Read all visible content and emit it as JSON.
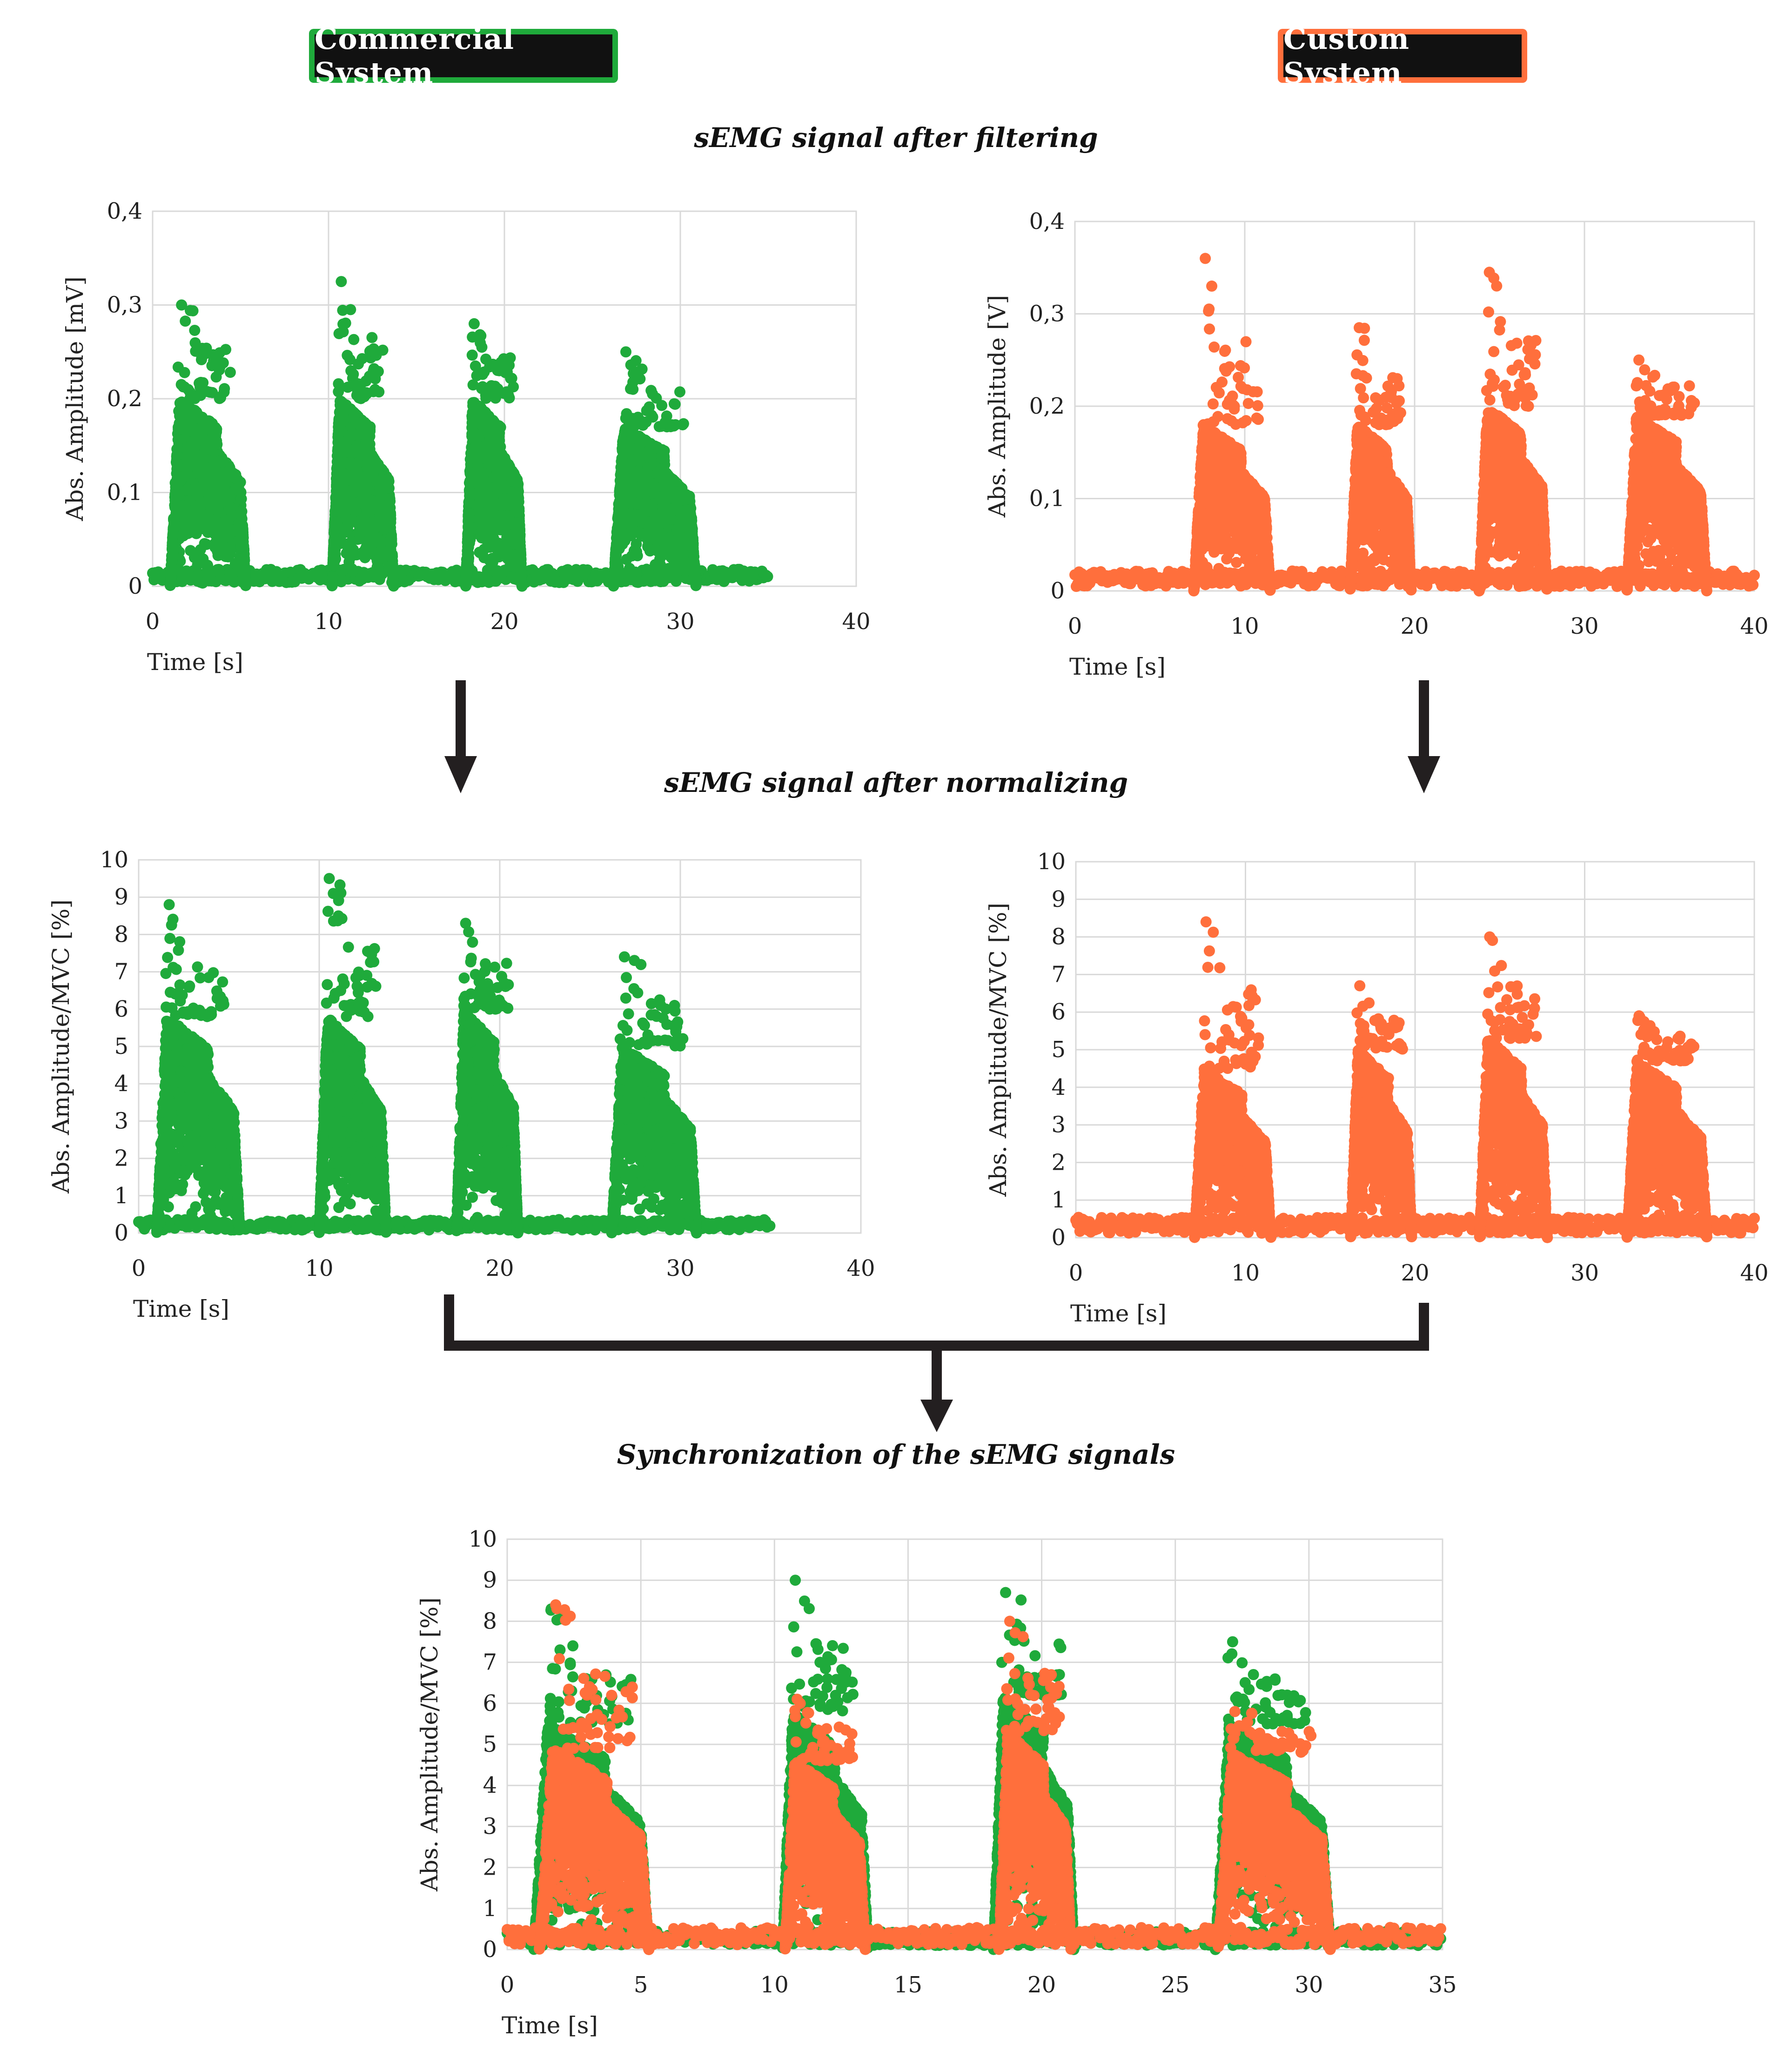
{
  "labels": {
    "commercial": "Commercial System",
    "custom": "Custom System"
  },
  "stages": {
    "filtering": "sEMG signal after filtering",
    "normalizing": "sEMG signal after normalizing",
    "synchronization": "Synchronization of the sEMG signals"
  },
  "colors": {
    "commercial": "#1faa3b",
    "custom": "#ff6f3c",
    "arrow": "#231f20",
    "grid": "#d9d9d9",
    "label_bg": "#111111"
  },
  "chart_data": [
    {
      "id": "commercial-filtered",
      "type": "scatter",
      "title": "",
      "xlabel": "Time [s]",
      "ylabel": "Abs. Amplitude [mV]",
      "xlim": [
        0,
        40
      ],
      "ylim": [
        0,
        0.4
      ],
      "xticks": [
        "0",
        "10",
        "20",
        "30",
        "40"
      ],
      "yticks": [
        "0",
        "0,1",
        "0,2",
        "0,3",
        "0,4"
      ],
      "grid": true,
      "series": [
        {
          "name": "Commercial System",
          "color": "#1faa3b",
          "baseline": 0.01,
          "x_end": 35,
          "bursts": [
            {
              "start": 1.0,
              "end": 5.3,
              "peak": 0.3,
              "body": 0.2
            },
            {
              "start": 10.2,
              "end": 13.7,
              "peak": 0.325,
              "body": 0.2
            },
            {
              "start": 17.8,
              "end": 21.0,
              "peak": 0.28,
              "body": 0.2
            },
            {
              "start": 26.2,
              "end": 30.9,
              "peak": 0.25,
              "body": 0.17
            }
          ]
        }
      ]
    },
    {
      "id": "custom-filtered",
      "type": "scatter",
      "title": "",
      "xlabel": "Time [s]",
      "ylabel": "Abs. Amplitude [V]",
      "xlim": [
        0,
        40
      ],
      "ylim": [
        0,
        0.4
      ],
      "xticks": [
        "0",
        "10",
        "20",
        "30",
        "40"
      ],
      "yticks": [
        "0",
        "0,1",
        "0,2",
        "0,3",
        "0,4"
      ],
      "grid": true,
      "series": [
        {
          "name": "Custom System",
          "color": "#ff6f3c",
          "baseline": 0.012,
          "x_end": 40,
          "bursts": [
            {
              "start": 7.0,
              "end": 11.5,
              "peak": 0.36,
              "body": 0.18
            },
            {
              "start": 16.2,
              "end": 19.8,
              "peak": 0.285,
              "body": 0.18
            },
            {
              "start": 23.8,
              "end": 27.8,
              "peak": 0.345,
              "body": 0.2
            },
            {
              "start": 32.5,
              "end": 37.2,
              "peak": 0.25,
              "body": 0.19
            }
          ]
        }
      ]
    },
    {
      "id": "commercial-normalized",
      "type": "scatter",
      "title": "",
      "xlabel": "Time [s]",
      "ylabel": "Abs. Amplitude/MVC [%]",
      "xlim": [
        0,
        40
      ],
      "ylim": [
        0,
        10
      ],
      "xticks": [
        "0",
        "10",
        "20",
        "30",
        "40"
      ],
      "yticks": [
        "0",
        "1",
        "2",
        "3",
        "4",
        "5",
        "6",
        "7",
        "8",
        "9",
        "10"
      ],
      "grid": true,
      "series": [
        {
          "name": "Commercial System",
          "color": "#1faa3b",
          "baseline": 0.2,
          "x_end": 35,
          "bursts": [
            {
              "start": 1.0,
              "end": 5.6,
              "peak": 8.8,
              "body": 5.8
            },
            {
              "start": 10.0,
              "end": 13.7,
              "peak": 9.5,
              "body": 5.8
            },
            {
              "start": 17.6,
              "end": 21.0,
              "peak": 8.3,
              "body": 6.0
            },
            {
              "start": 26.2,
              "end": 30.9,
              "peak": 7.4,
              "body": 5.0
            }
          ]
        }
      ]
    },
    {
      "id": "custom-normalized",
      "type": "scatter",
      "title": "",
      "xlabel": "Time [s]",
      "ylabel": "Abs. Amplitude/MVC [%]",
      "xlim": [
        0,
        40
      ],
      "ylim": [
        0,
        10
      ],
      "xticks": [
        "0",
        "10",
        "20",
        "30",
        "40"
      ],
      "yticks": [
        "0",
        "1",
        "2",
        "3",
        "4",
        "5",
        "6",
        "7",
        "8",
        "9",
        "10"
      ],
      "grid": true,
      "series": [
        {
          "name": "Custom System",
          "color": "#ff6f3c",
          "baseline": 0.3,
          "x_end": 40,
          "bursts": [
            {
              "start": 7.0,
              "end": 11.5,
              "peak": 8.4,
              "body": 4.5
            },
            {
              "start": 16.2,
              "end": 19.8,
              "peak": 6.7,
              "body": 5.0
            },
            {
              "start": 23.8,
              "end": 27.8,
              "peak": 8.0,
              "body": 5.3
            },
            {
              "start": 32.5,
              "end": 37.2,
              "peak": 5.9,
              "body": 4.7
            }
          ]
        }
      ]
    },
    {
      "id": "synchronized",
      "type": "scatter",
      "title": "",
      "xlabel": "Time [s]",
      "ylabel": "Abs. Amplitude/MVC [%]",
      "xlim": [
        0,
        35
      ],
      "ylim": [
        0,
        10
      ],
      "xticks": [
        "0",
        "5",
        "10",
        "15",
        "20",
        "25",
        "30",
        "35"
      ],
      "yticks": [
        "0",
        "1",
        "2",
        "3",
        "4",
        "5",
        "6",
        "7",
        "8",
        "9",
        "10"
      ],
      "grid": true,
      "series": [
        {
          "name": "Commercial System",
          "color": "#1faa3b",
          "baseline": 0.25,
          "x_end": 35,
          "bursts": [
            {
              "start": 1.0,
              "end": 5.3,
              "peak": 8.3,
              "body": 5.5
            },
            {
              "start": 10.3,
              "end": 13.5,
              "peak": 9.0,
              "body": 5.8
            },
            {
              "start": 18.2,
              "end": 21.2,
              "peak": 8.7,
              "body": 6.2
            },
            {
              "start": 26.5,
              "end": 30.8,
              "peak": 7.5,
              "body": 5.5
            }
          ]
        },
        {
          "name": "Custom System",
          "color": "#ff6f3c",
          "baseline": 0.3,
          "x_end": 35,
          "bursts": [
            {
              "start": 1.2,
              "end": 5.3,
              "peak": 8.4,
              "body": 4.9
            },
            {
              "start": 10.4,
              "end": 13.4,
              "peak": 6.1,
              "body": 4.6
            },
            {
              "start": 18.4,
              "end": 21.1,
              "peak": 8.0,
              "body": 5.3
            },
            {
              "start": 26.6,
              "end": 30.8,
              "peak": 5.8,
              "body": 4.8
            }
          ]
        }
      ]
    }
  ]
}
